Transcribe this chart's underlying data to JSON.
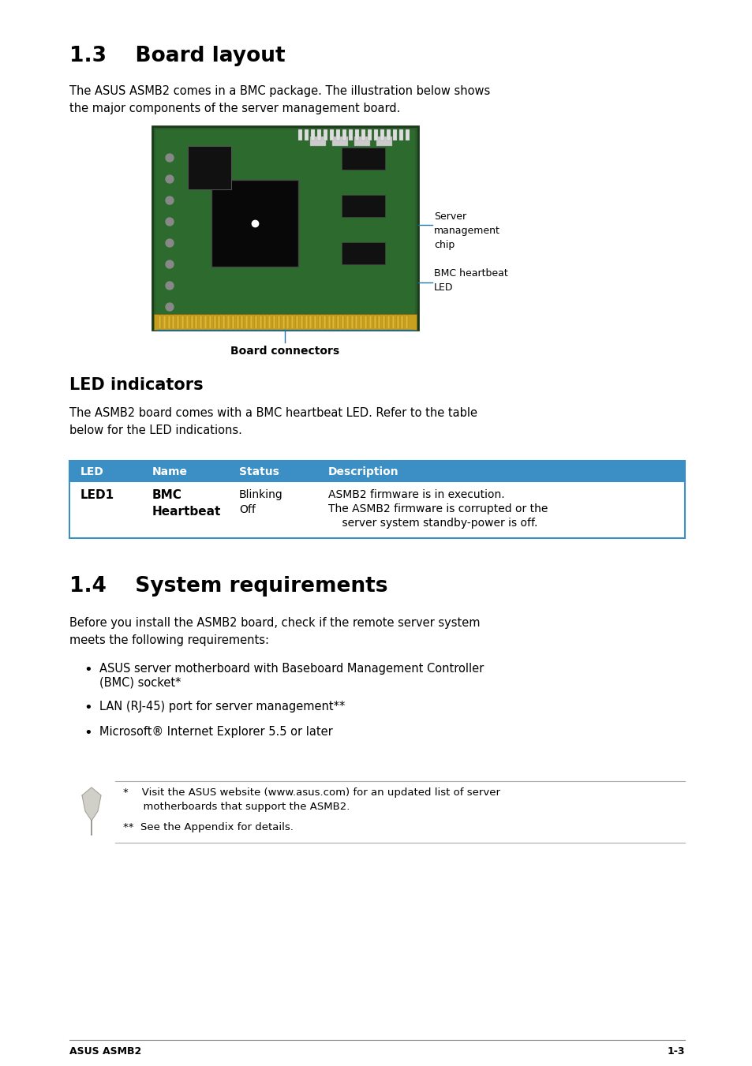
{
  "page_bg": "#ffffff",
  "section1_title": "1.3    Board layout",
  "section1_body": "The ASUS ASMB2 comes in a BMC package. The illustration below shows\nthe major components of the server management board.",
  "board_label1": "Server\nmanagement\nchip",
  "board_label2": "BMC heartbeat\nLED",
  "board_connectors_label": "Board connectors",
  "led_section_title": "LED indicators",
  "led_section_body": "The ASMB2 board comes with a BMC heartbeat LED. Refer to the table\nbelow for the LED indications.",
  "table_header_bg": "#3b8fc4",
  "table_header_color": "#ffffff",
  "table_border_color": "#3b8fc4",
  "table_headers": [
    "LED",
    "Name",
    "Status",
    "Description"
  ],
  "table_row_col1": "LED1",
  "table_row_col2": "BMC\nHeartbeat",
  "table_row_col3": "Blinking\nOff",
  "table_row_col4a": "ASMB2 firmware is in execution.",
  "table_row_col4b": "The ASMB2 firmware is corrupted or the",
  "table_row_col4c": "    server system standby-power is off.",
  "section2_title": "1.4    System requirements",
  "section2_body": "Before you install the ASMB2 board, check if the remote server system\nmeets the following requirements:",
  "bullet1_line1": "ASUS server motherboard with Baseboard Management Controller",
  "bullet1_line2": "(BMC) socket*",
  "bullet2": "LAN (RJ-45) port for server management**",
  "bullet3": "Microsoft® Internet Explorer 5.5 or later",
  "note1a": "*    Visit the ASUS website (www.asus.com) for an updated list of server",
  "note1b": "      motherboards that support the ASMB2.",
  "note2": "**  See the Appendix for details.",
  "footer_left": "ASUS ASMB2",
  "footer_right": "1-3"
}
